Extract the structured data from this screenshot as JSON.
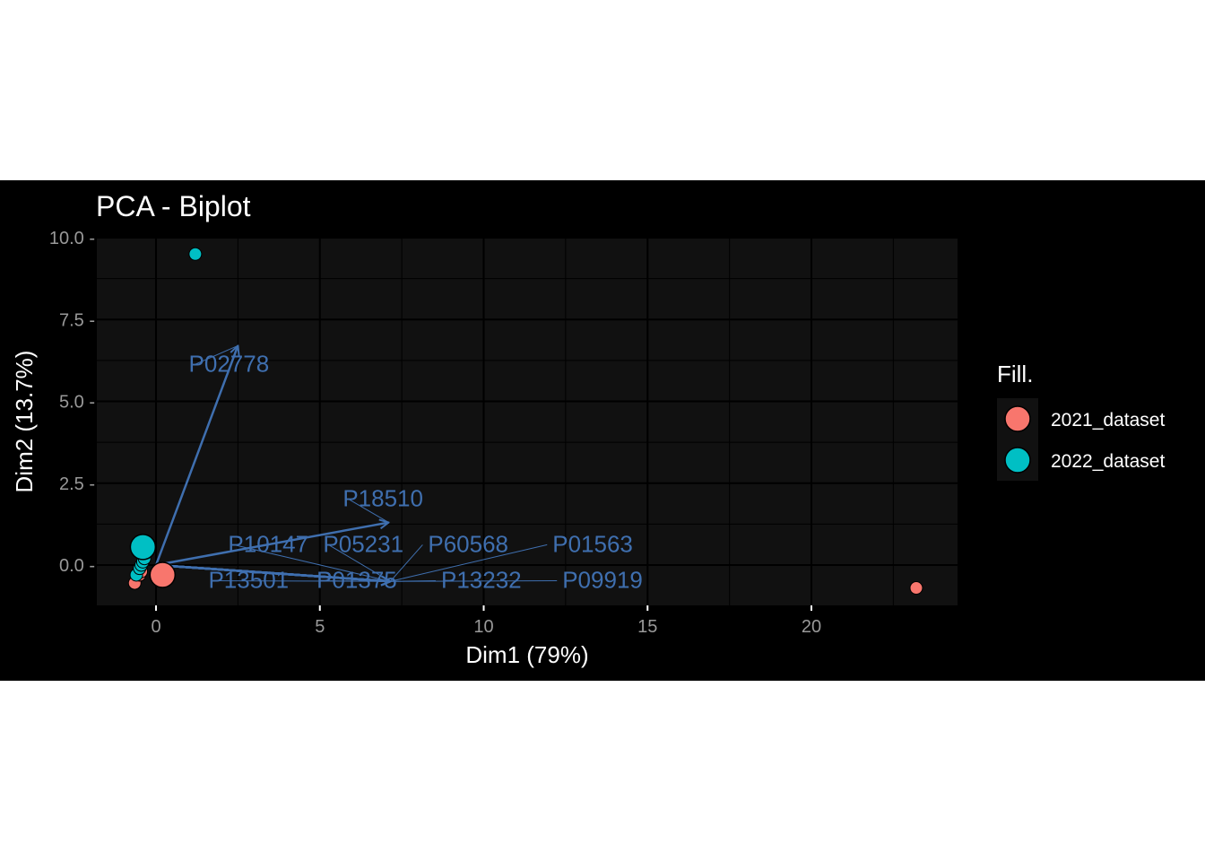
{
  "chart_data": {
    "type": "scatter",
    "title": "PCA - Biplot",
    "xlabel": "Dim1 (79%)",
    "ylabel": "Dim2 (13.7%)",
    "xlim": [
      -1.8,
      24.5
    ],
    "ylim": [
      -1.2,
      10.0
    ],
    "x_ticks": [
      0,
      5,
      10,
      15,
      20
    ],
    "y_ticks": [
      0.0,
      2.5,
      5.0,
      7.5,
      10.0
    ],
    "x_tick_labels": [
      "0",
      "5",
      "10",
      "15",
      "20"
    ],
    "y_tick_labels": [
      "0.0 -",
      "2.5 -",
      "5.0 -",
      "7.5 -",
      "10.0 -"
    ],
    "grid": true,
    "legend": {
      "title": "Fill.",
      "placement": "right",
      "entries": [
        {
          "label": "2021_dataset",
          "color": "#F8766D"
        },
        {
          "label": "2022_dataset",
          "color": "#00BFC4"
        }
      ]
    },
    "colors": {
      "panel": "#111111",
      "grid_major": "#000000",
      "grid_minor": "#000000",
      "vector": "#3F6FAF",
      "text": "#FFFFFF",
      "tick_text": "#999999"
    },
    "series": [
      {
        "name": "2021_dataset",
        "color": "#F8766D",
        "points": [
          {
            "x": -0.65,
            "y": -0.55
          },
          {
            "x": -0.5,
            "y": -0.3
          },
          {
            "x": -0.45,
            "y": -0.2
          },
          {
            "x": 23.2,
            "y": -0.7
          }
        ],
        "centroid": {
          "x": 0.2,
          "y": -0.3
        }
      },
      {
        "name": "2022_dataset",
        "color": "#00BFC4",
        "points": [
          {
            "x": -0.6,
            "y": -0.3
          },
          {
            "x": -0.5,
            "y": -0.1
          },
          {
            "x": -0.45,
            "y": 0.0
          },
          {
            "x": -0.4,
            "y": 0.1
          },
          {
            "x": -0.35,
            "y": 0.2
          },
          {
            "x": 1.2,
            "y": 9.5
          }
        ],
        "centroid": {
          "x": -0.4,
          "y": 0.55
        }
      }
    ],
    "variables": [
      {
        "name": "P02778",
        "x": 2.5,
        "y": 6.7,
        "label_x": 1.0,
        "label_y": 5.9
      },
      {
        "name": "P18510",
        "x": 7.1,
        "y": 1.3,
        "label_x": 5.7,
        "label_y": 1.8
      },
      {
        "name": "P10147",
        "x": 7.15,
        "y": -0.5,
        "label_x": 2.2,
        "label_y": 0.4
      },
      {
        "name": "P05231",
        "x": 7.15,
        "y": -0.5,
        "label_x": 5.1,
        "label_y": 0.4
      },
      {
        "name": "P60568",
        "x": 7.15,
        "y": -0.5,
        "label_x": 8.3,
        "label_y": 0.4
      },
      {
        "name": "P01563",
        "x": 7.15,
        "y": -0.5,
        "label_x": 12.1,
        "label_y": 0.4
      },
      {
        "name": "P13501",
        "x": 7.15,
        "y": -0.5,
        "label_x": 1.6,
        "label_y": -0.7
      },
      {
        "name": "P01375",
        "x": 7.15,
        "y": -0.5,
        "label_x": 4.9,
        "label_y": -0.7
      },
      {
        "name": "P13232",
        "x": 7.15,
        "y": -0.5,
        "label_x": 8.7,
        "label_y": -0.7
      },
      {
        "name": "P09919",
        "x": 7.15,
        "y": -0.5,
        "label_x": 12.4,
        "label_y": -0.7
      }
    ]
  }
}
